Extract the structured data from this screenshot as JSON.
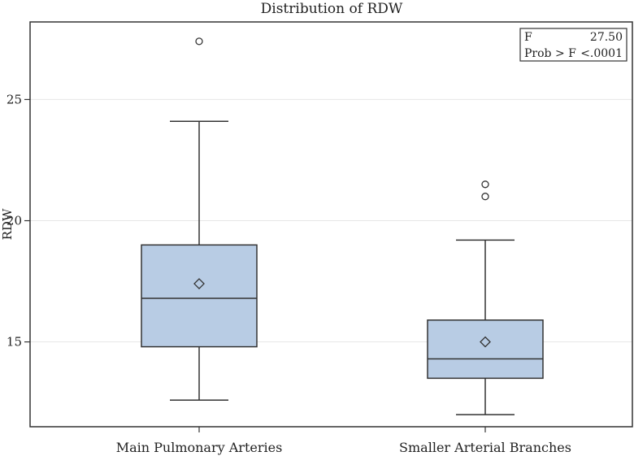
{
  "chart_data": {
    "type": "boxplot",
    "title": "Distribution of RDW",
    "xlabel": "",
    "ylabel": "RDW",
    "ylim": [
      11.5,
      28.2
    ],
    "yticks": [
      15,
      20,
      25
    ],
    "grid": "horizontal",
    "categories": [
      "Main Pulmonary Arteries",
      "Smaller Arterial Branches"
    ],
    "boxes": [
      {
        "category": "Main Pulmonary Arteries",
        "whisker_low": 12.6,
        "q1": 14.8,
        "median": 16.8,
        "mean": 17.4,
        "q3": 19.0,
        "whisker_high": 24.1,
        "outliers": [
          27.4
        ]
      },
      {
        "category": "Smaller Arterial Branches",
        "whisker_low": 12.0,
        "q1": 13.5,
        "median": 14.3,
        "mean": 15.0,
        "q3": 15.9,
        "whisker_high": 19.2,
        "outliers": [
          21.5,
          21.0
        ]
      }
    ],
    "stats_box": {
      "placement": "top-right",
      "rows": [
        {
          "label": "F",
          "value": "27.50"
        },
        {
          "label": "Prob > F",
          "value": "<.0001"
        }
      ]
    },
    "colors": {
      "box_fill": "#b8cce4",
      "stroke": "#333333",
      "grid": "#e6e6e6"
    }
  }
}
